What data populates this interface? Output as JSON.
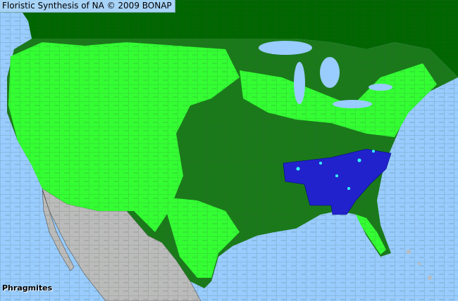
{
  "title": "Floristic Synthesis of NA © 2009 BONAP",
  "species": "Phragmites",
  "colors": {
    "water": "#99ccff",
    "canada": "#006600",
    "county_present": "#33ff33",
    "state_present": "#1a7a1a",
    "native_highlight": "#2222cc",
    "rare_in_highlight": "#33ffff",
    "mexico": "#bbbbbb"
  }
}
